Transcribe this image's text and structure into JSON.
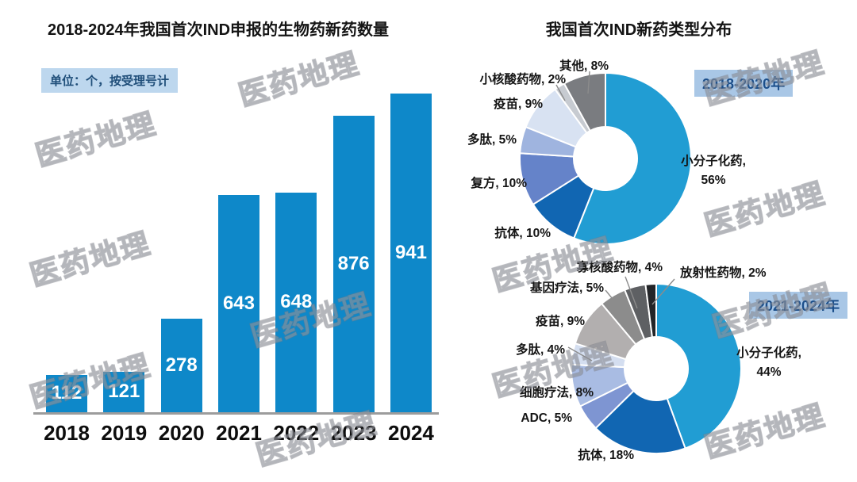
{
  "watermark": {
    "text": "医药地理"
  },
  "left_chart": {
    "title": "2018-2024年我国首次IND申报的生物药新药数量",
    "unit_note": "单位：个，按受理号计"
  },
  "right_chart": {
    "title": "我国首次IND新药类型分布"
  },
  "chart_data": [
    {
      "type": "bar",
      "title": "2018-2024年我国首次IND申报的生物药新药数量",
      "categories": [
        "2018",
        "2019",
        "2020",
        "2021",
        "2022",
        "2023",
        "2024"
      ],
      "values": [
        112,
        121,
        278,
        643,
        648,
        876,
        941
      ],
      "bar_color": "#0E88C9",
      "value_labels": "inside-center, white",
      "ylim": [
        0,
        941
      ],
      "grid": false
    },
    {
      "type": "pie",
      "subtype": "donut",
      "badge": "2018-2020年",
      "slices": [
        {
          "name": "小分子化药",
          "pct": 56,
          "color": "#219DD3"
        },
        {
          "name": "抗体",
          "pct": 10,
          "color": "#1166B2"
        },
        {
          "name": "复方",
          "pct": 10,
          "color": "#6583C9"
        },
        {
          "name": "多肽",
          "pct": 5,
          "color": "#9FB4DF"
        },
        {
          "name": "疫苗",
          "pct": 9,
          "color": "#D8E2F2"
        },
        {
          "name": "小核酸药物",
          "pct": 2,
          "color": "#C7CBD1"
        },
        {
          "name": "其他",
          "pct": 8,
          "color": "#7A7C80"
        }
      ]
    },
    {
      "type": "pie",
      "subtype": "donut",
      "badge": "2021-2024年",
      "slices": [
        {
          "name": "小分子化药",
          "pct": 44,
          "color": "#219DD3"
        },
        {
          "name": "抗体",
          "pct": 18,
          "color": "#1166B2"
        },
        {
          "name": "ADC",
          "pct": 5,
          "color": "#7E95D2"
        },
        {
          "name": "细胞疗法",
          "pct": 8,
          "color": "#A9BCE3"
        },
        {
          "name": "多肽",
          "pct": 4,
          "color": "#D4DEF0"
        },
        {
          "name": "疫苗",
          "pct": 9,
          "color": "#B2AFAF"
        },
        {
          "name": "基因疗法",
          "pct": 5,
          "color": "#8C8C8C"
        },
        {
          "name": "寡核酸药物",
          "pct": 4,
          "color": "#5E6063"
        },
        {
          "name": "放射性药物",
          "pct": 2,
          "color": "#232528"
        }
      ]
    }
  ]
}
